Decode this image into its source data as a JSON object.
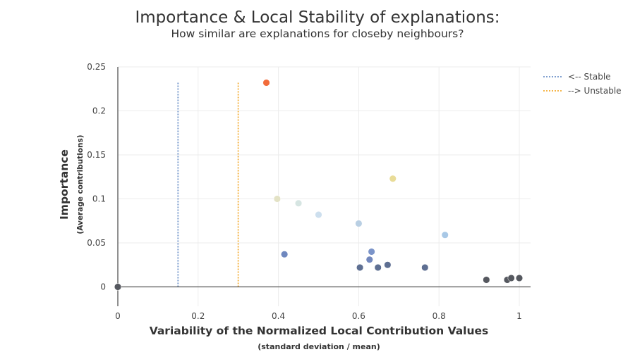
{
  "chart_data": {
    "type": "scatter",
    "title": "Importance & Local Stability of explanations:",
    "subtitle": "How similar are explanations for closeby neighbours?",
    "xlabel": "Variability of the Normalized Local Contribution Values",
    "xlabel_sub": "(standard deviation / mean)",
    "ylabel": "Importance",
    "ylabel_sub": "(Average contributions)",
    "xlim": [
      -0.02,
      1.03
    ],
    "ylim": [
      -0.022,
      0.25
    ],
    "x_ticks": [
      0,
      0.2,
      0.4,
      0.6,
      0.8,
      1
    ],
    "x_tick_labels": [
      "0",
      "0.2",
      "0.4",
      "0.6",
      "0.8",
      "1"
    ],
    "y_ticks": [
      0,
      0.05,
      0.1,
      0.15,
      0.2,
      0.25
    ],
    "y_tick_labels": [
      "0",
      "0.05",
      "0.1",
      "0.15",
      "0.2",
      "0.25"
    ],
    "grid": true,
    "legend_position": "top-right",
    "thresholds": [
      {
        "name": "<-- Stable",
        "x": 0.15,
        "y_range": [
          0,
          0.232
        ],
        "color": "#7f9fcf"
      },
      {
        "name": "--> Unstable",
        "x": 0.3,
        "y_range": [
          0,
          0.232
        ],
        "color": "#f5b64a"
      }
    ],
    "points": [
      {
        "x": 0.0,
        "y": 0.0,
        "color": "#55585f"
      },
      {
        "x": 0.37,
        "y": 0.232,
        "color": "#f26b3a"
      },
      {
        "x": 0.397,
        "y": 0.1,
        "color": "#e3e2c5"
      },
      {
        "x": 0.45,
        "y": 0.095,
        "color": "#d6e5e2"
      },
      {
        "x": 0.5,
        "y": 0.082,
        "color": "#cddfee"
      },
      {
        "x": 0.6,
        "y": 0.072,
        "color": "#b9cfe3"
      },
      {
        "x": 0.685,
        "y": 0.123,
        "color": "#e9dc98"
      },
      {
        "x": 0.815,
        "y": 0.059,
        "color": "#a8c8e6"
      },
      {
        "x": 0.415,
        "y": 0.037,
        "color": "#6f88bf"
      },
      {
        "x": 0.632,
        "y": 0.04,
        "color": "#7b94c9"
      },
      {
        "x": 0.627,
        "y": 0.031,
        "color": "#7388bd"
      },
      {
        "x": 0.603,
        "y": 0.022,
        "color": "#5e6f92"
      },
      {
        "x": 0.648,
        "y": 0.022,
        "color": "#5e6f92"
      },
      {
        "x": 0.672,
        "y": 0.025,
        "color": "#5e6f92"
      },
      {
        "x": 0.765,
        "y": 0.022,
        "color": "#5e6f92"
      },
      {
        "x": 0.918,
        "y": 0.008,
        "color": "#55585f"
      },
      {
        "x": 0.97,
        "y": 0.008,
        "color": "#55585f"
      },
      {
        "x": 0.98,
        "y": 0.01,
        "color": "#55585f"
      },
      {
        "x": 1.0,
        "y": 0.01,
        "color": "#55585f"
      }
    ]
  }
}
